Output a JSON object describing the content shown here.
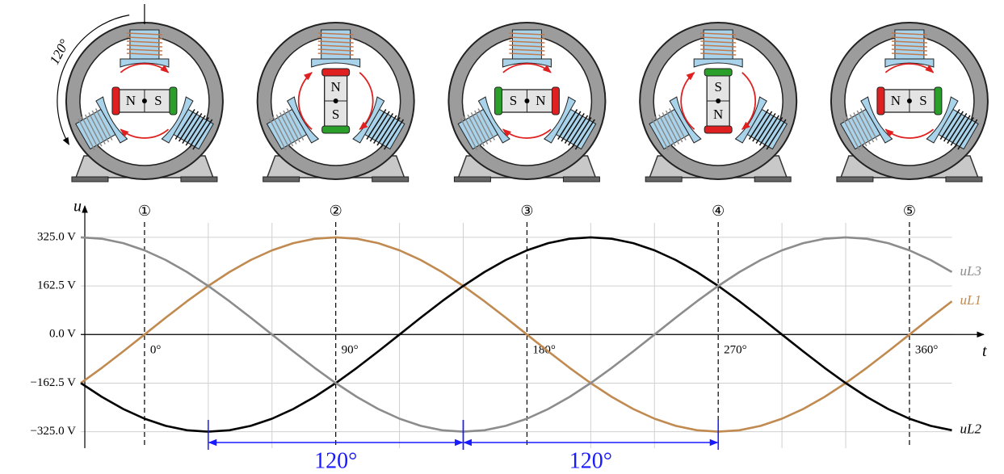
{
  "chart_data": {
    "type": "line",
    "x": [
      -30,
      -20,
      -10,
      0,
      10,
      20,
      30,
      40,
      50,
      60,
      70,
      80,
      90,
      100,
      110,
      120,
      130,
      140,
      150,
      160,
      170,
      180,
      190,
      200,
      210,
      220,
      230,
      240,
      250,
      260,
      270,
      280,
      290,
      300,
      310,
      320,
      330,
      340,
      350,
      360,
      370,
      380
    ],
    "series": [
      {
        "name": "uL1",
        "color": "#c08a50",
        "values": [
          -162.5,
          -111.2,
          -56.4,
          0,
          56.4,
          111.2,
          162.5,
          208.9,
          249.0,
          281.5,
          305.4,
          320.1,
          325,
          320.1,
          305.4,
          281.5,
          249.0,
          208.9,
          162.5,
          111.2,
          56.4,
          0,
          -56.4,
          -111.2,
          -162.5,
          -208.9,
          -249.0,
          -281.5,
          -305.4,
          -320.1,
          -325,
          -320.1,
          -305.4,
          -281.5,
          -249.0,
          -208.9,
          -162.5,
          -111.2,
          -56.4,
          0,
          56.4,
          111.2
        ]
      },
      {
        "name": "uL2",
        "color": "#000000",
        "values": [
          -162.5,
          -208.9,
          -249.0,
          -281.5,
          -305.4,
          -320.1,
          -325,
          -320.1,
          -305.4,
          -281.5,
          -249.0,
          -208.9,
          -162.5,
          -111.2,
          -56.4,
          0,
          56.4,
          111.2,
          162.5,
          208.9,
          249.0,
          281.5,
          305.4,
          320.1,
          325,
          320.1,
          305.4,
          281.5,
          249.0,
          208.9,
          162.5,
          111.2,
          56.4,
          0,
          -56.4,
          -111.2,
          -162.5,
          -208.9,
          -249.0,
          -281.5,
          -305.4,
          -320.1
        ]
      },
      {
        "name": "uL3",
        "color": "#8c8c8c",
        "values": [
          325,
          320.1,
          305.4,
          281.5,
          249.0,
          208.9,
          162.5,
          111.2,
          56.4,
          0,
          -56.4,
          -111.2,
          -162.5,
          -208.9,
          -249.0,
          -281.5,
          -305.4,
          -320.1,
          -325,
          -320.1,
          -305.4,
          -281.5,
          -249.0,
          -208.9,
          -162.5,
          -111.2,
          -56.4,
          0,
          56.4,
          111.2,
          162.5,
          208.9,
          249.0,
          281.5,
          305.4,
          320.1,
          325,
          320.1,
          305.4,
          281.5,
          249.0,
          208.9
        ]
      }
    ],
    "x_label": "t",
    "y_label": "u",
    "xlim": [
      -30,
      395
    ],
    "ylim": [
      -380,
      430
    ],
    "xticks": [
      {
        "value": 0,
        "label": "0°"
      },
      {
        "value": 90,
        "label": "90°"
      },
      {
        "value": 180,
        "label": "180°"
      },
      {
        "value": 270,
        "label": "270°"
      },
      {
        "value": 360,
        "label": "360°"
      }
    ],
    "yticks": [
      {
        "value": 325,
        "label": "325.0 V"
      },
      {
        "value": 162.5,
        "label": "162.5 V"
      },
      {
        "value": 0,
        "label": "0.0 V"
      },
      {
        "value": -162.5,
        "label": "−162.5 V"
      },
      {
        "value": -325,
        "label": "−325.0 V"
      }
    ],
    "xgrid": [
      30,
      60,
      120,
      150,
      210,
      240,
      300,
      330
    ],
    "grid": true,
    "markers": [
      "①",
      "②",
      "③",
      "④",
      "⑤"
    ],
    "annotations": [
      {
        "from": 30,
        "to": 150,
        "label": "120°"
      },
      {
        "from": 150,
        "to": 270,
        "label": "120°"
      }
    ],
    "annotation_color": "#1a1aff"
  },
  "motors": [
    {
      "rotor": [
        "N",
        "S"
      ],
      "rotor_colors": [
        "#e02020",
        "#2aa02a"
      ],
      "vertical": false,
      "angle_label": "120°"
    },
    {
      "rotor": [
        "N",
        "S"
      ],
      "rotor_colors": [
        "#e02020",
        "#2aa02a"
      ],
      "vertical": true
    },
    {
      "rotor": [
        "S",
        "N"
      ],
      "rotor_colors": [
        "#2aa02a",
        "#e02020"
      ],
      "vertical": false
    },
    {
      "rotor": [
        "S",
        "N"
      ],
      "rotor_colors": [
        "#2aa02a",
        "#e02020"
      ],
      "vertical": true
    },
    {
      "rotor": [
        "N",
        "S"
      ],
      "rotor_colors": [
        "#e02020",
        "#2aa02a"
      ],
      "vertical": false
    }
  ]
}
